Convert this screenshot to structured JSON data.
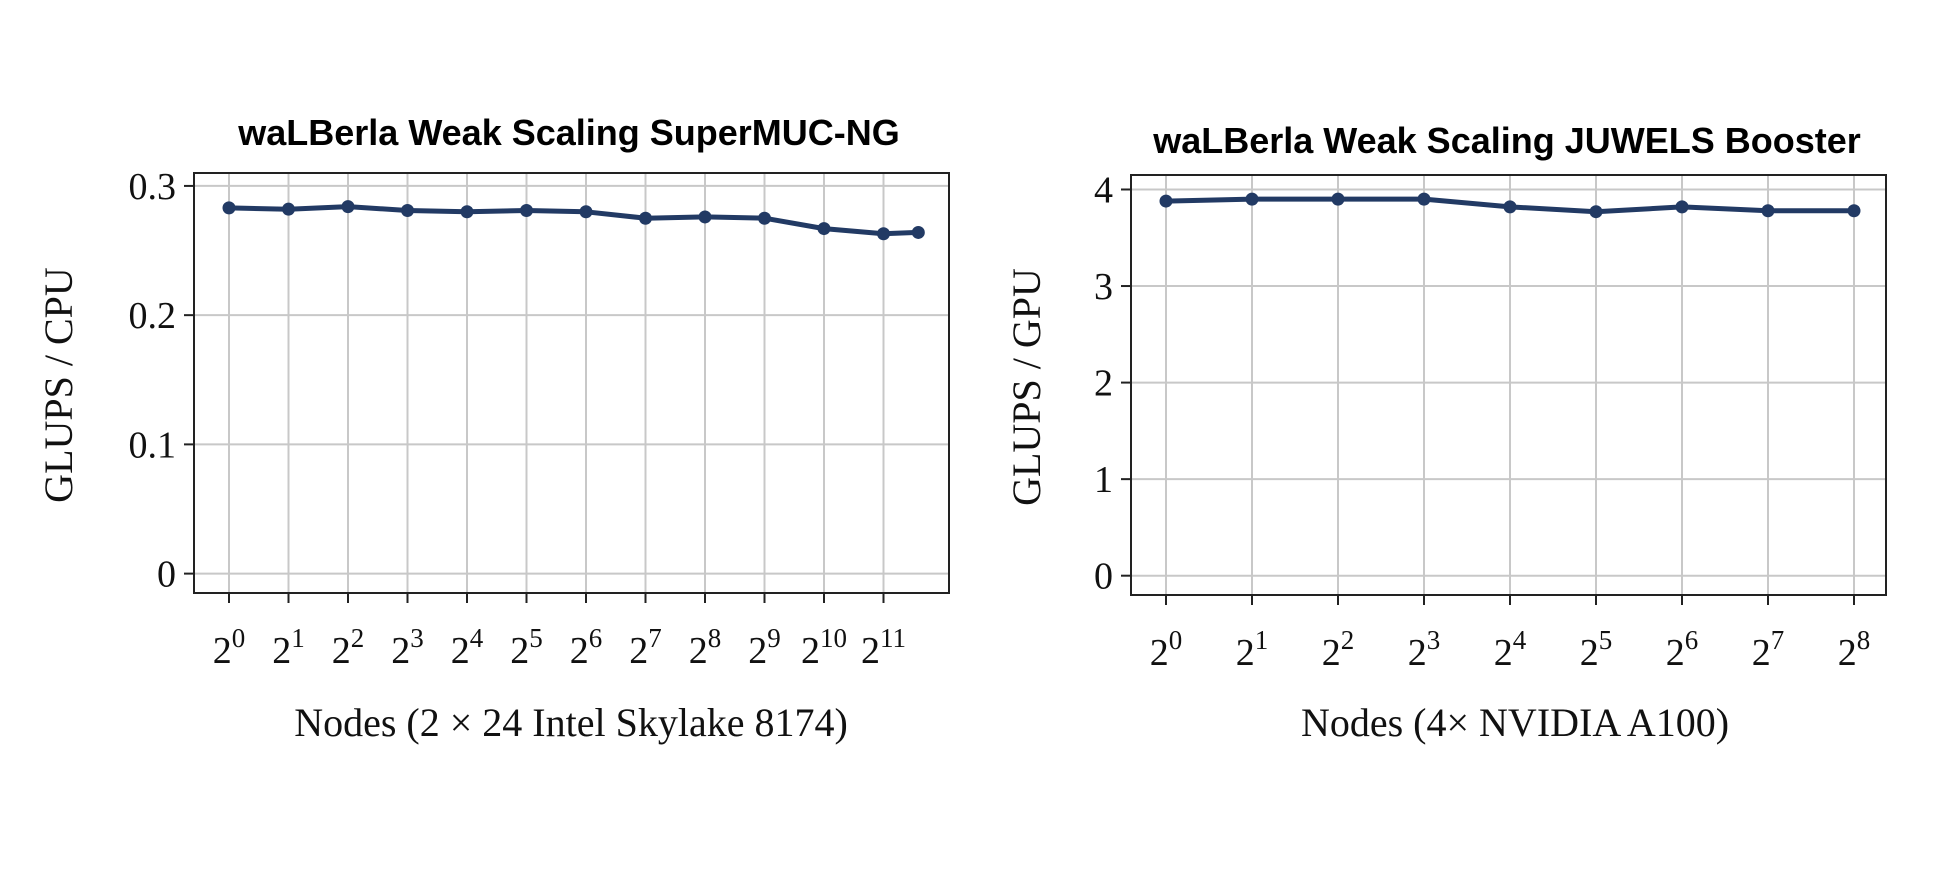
{
  "colors": {
    "series": "#223a64",
    "grid": "#c8c8c8",
    "frame": "#222222"
  },
  "chart_data": [
    {
      "type": "line",
      "title": "waLBerla Weak Scaling SuperMUC-NG",
      "xlabel": "Nodes (2 × 24 Intel Skylake 8174)",
      "ylabel": "GLUPS / CPU",
      "x_scale": "log2",
      "x": [
        1,
        2,
        4,
        8,
        16,
        32,
        64,
        128,
        256,
        512,
        1024,
        2048,
        3072
      ],
      "x_ticks": [
        {
          "base": "2",
          "exp": "0",
          "value": 1
        },
        {
          "base": "2",
          "exp": "1",
          "value": 2
        },
        {
          "base": "2",
          "exp": "2",
          "value": 4
        },
        {
          "base": "2",
          "exp": "3",
          "value": 8
        },
        {
          "base": "2",
          "exp": "4",
          "value": 16
        },
        {
          "base": "2",
          "exp": "5",
          "value": 32
        },
        {
          "base": "2",
          "exp": "6",
          "value": 64
        },
        {
          "base": "2",
          "exp": "7",
          "value": 128
        },
        {
          "base": "2",
          "exp": "8",
          "value": 256
        },
        {
          "base": "2",
          "exp": "9",
          "value": 512
        },
        {
          "base": "2",
          "exp": "10",
          "value": 1024
        },
        {
          "base": "2",
          "exp": "11",
          "value": 2048
        }
      ],
      "ylim": [
        -0.015,
        0.31
      ],
      "y_ticks": [
        {
          "label": "0",
          "value": 0
        },
        {
          "label": "0.1",
          "value": 0.1
        },
        {
          "label": "0.2",
          "value": 0.2
        },
        {
          "label": "0.3",
          "value": 0.3
        }
      ],
      "series": [
        {
          "values": [
            0.283,
            0.282,
            0.284,
            0.281,
            0.28,
            0.281,
            0.28,
            0.275,
            0.276,
            0.275,
            0.267,
            0.263,
            0.264
          ]
        }
      ],
      "grid": true
    },
    {
      "type": "line",
      "title": "waLBerla Weak Scaling JUWELS Booster",
      "xlabel": "Nodes (4× NVIDIA A100)",
      "ylabel": "GLUPS / GPU",
      "x_scale": "log2",
      "x": [
        1,
        2,
        4,
        8,
        16,
        32,
        64,
        128,
        256
      ],
      "x_ticks": [
        {
          "base": "2",
          "exp": "0",
          "value": 1
        },
        {
          "base": "2",
          "exp": "1",
          "value": 2
        },
        {
          "base": "2",
          "exp": "2",
          "value": 4
        },
        {
          "base": "2",
          "exp": "3",
          "value": 8
        },
        {
          "base": "2",
          "exp": "4",
          "value": 16
        },
        {
          "base": "2",
          "exp": "5",
          "value": 32
        },
        {
          "base": "2",
          "exp": "6",
          "value": 64
        },
        {
          "base": "2",
          "exp": "7",
          "value": 128
        },
        {
          "base": "2",
          "exp": "8",
          "value": 256
        }
      ],
      "ylim": [
        -0.2,
        4.15
      ],
      "y_ticks": [
        {
          "label": "0",
          "value": 0
        },
        {
          "label": "1",
          "value": 1
        },
        {
          "label": "2",
          "value": 2
        },
        {
          "label": "3",
          "value": 3
        },
        {
          "label": "4",
          "value": 4
        }
      ],
      "series": [
        {
          "values": [
            3.88,
            3.9,
            3.9,
            3.9,
            3.82,
            3.77,
            3.82,
            3.78,
            3.78
          ]
        }
      ],
      "grid": true
    }
  ]
}
